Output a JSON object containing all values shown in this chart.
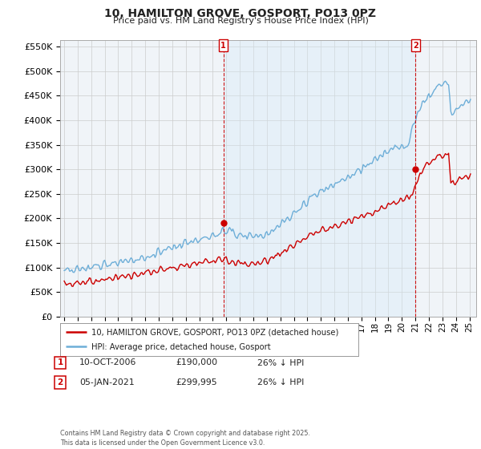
{
  "title": "10, HAMILTON GROVE, GOSPORT, PO13 0PZ",
  "subtitle": "Price paid vs. HM Land Registry's House Price Index (HPI)",
  "ylim": [
    0,
    562500
  ],
  "yticks": [
    0,
    50000,
    100000,
    150000,
    200000,
    250000,
    300000,
    350000,
    400000,
    450000,
    500000,
    550000
  ],
  "xlim_start": 1994.7,
  "xlim_end": 2025.5,
  "property_color": "#cc0000",
  "hpi_color": "#6daed8",
  "hpi_fill_color": "#d6eaf8",
  "vline_color": "#cc0000",
  "shade_alpha": 0.35,
  "marker1_x": 2006.78,
  "marker1_y": 190000,
  "marker2_x": 2021.01,
  "marker2_y": 299995,
  "legend_property": "10, HAMILTON GROVE, GOSPORT, PO13 0PZ (detached house)",
  "legend_hpi": "HPI: Average price, detached house, Gosport",
  "annotation1_label": "1",
  "annotation1_date": "10-OCT-2006",
  "annotation1_price": "£190,000",
  "annotation1_hpi": "26% ↓ HPI",
  "annotation2_label": "2",
  "annotation2_date": "05-JAN-2021",
  "annotation2_price": "£299,995",
  "annotation2_hpi": "26% ↓ HPI",
  "footnote": "Contains HM Land Registry data © Crown copyright and database right 2025.\nThis data is licensed under the Open Government Licence v3.0.",
  "background_color": "#ffffff",
  "grid_color": "#cccccc",
  "chart_bg": "#f8f8f8"
}
